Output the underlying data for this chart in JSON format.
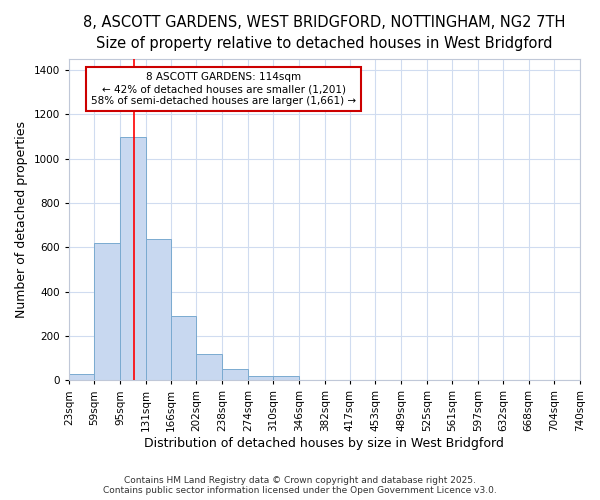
{
  "title_line1": "8, ASCOTT GARDENS, WEST BRIDGFORD, NOTTINGHAM, NG2 7TH",
  "title_line2": "Size of property relative to detached houses in West Bridgford",
  "xlabel": "Distribution of detached houses by size in West Bridgford",
  "ylabel": "Number of detached properties",
  "bin_edges": [
    23,
    59,
    95,
    131,
    166,
    202,
    238,
    274,
    310,
    346,
    382,
    417,
    453,
    489,
    525,
    561,
    597,
    632,
    668,
    704,
    740
  ],
  "bar_heights": [
    30,
    620,
    1100,
    640,
    290,
    120,
    50,
    20,
    20,
    0,
    0,
    0,
    0,
    0,
    0,
    0,
    0,
    0,
    0,
    0
  ],
  "bar_color": "#c8d8f0",
  "bar_edge_color": "#7aaad0",
  "background_color": "#ffffff",
  "grid_color": "#d0dcf0",
  "red_line_x": 114,
  "annotation_text": "8 ASCOTT GARDENS: 114sqm\n← 42% of detached houses are smaller (1,201)\n58% of semi-detached houses are larger (1,661) →",
  "annotation_box_color": "#ffffff",
  "annotation_box_edge": "#cc0000",
  "ylim": [
    0,
    1450
  ],
  "yticks": [
    0,
    200,
    400,
    600,
    800,
    1000,
    1200,
    1400
  ],
  "footer_line1": "Contains HM Land Registry data © Crown copyright and database right 2025.",
  "footer_line2": "Contains public sector information licensed under the Open Government Licence v3.0.",
  "title_fontsize": 10.5,
  "subtitle_fontsize": 9.5,
  "label_fontsize": 9,
  "tick_fontsize": 7.5,
  "annotation_fontsize": 7.5,
  "footer_fontsize": 6.5
}
